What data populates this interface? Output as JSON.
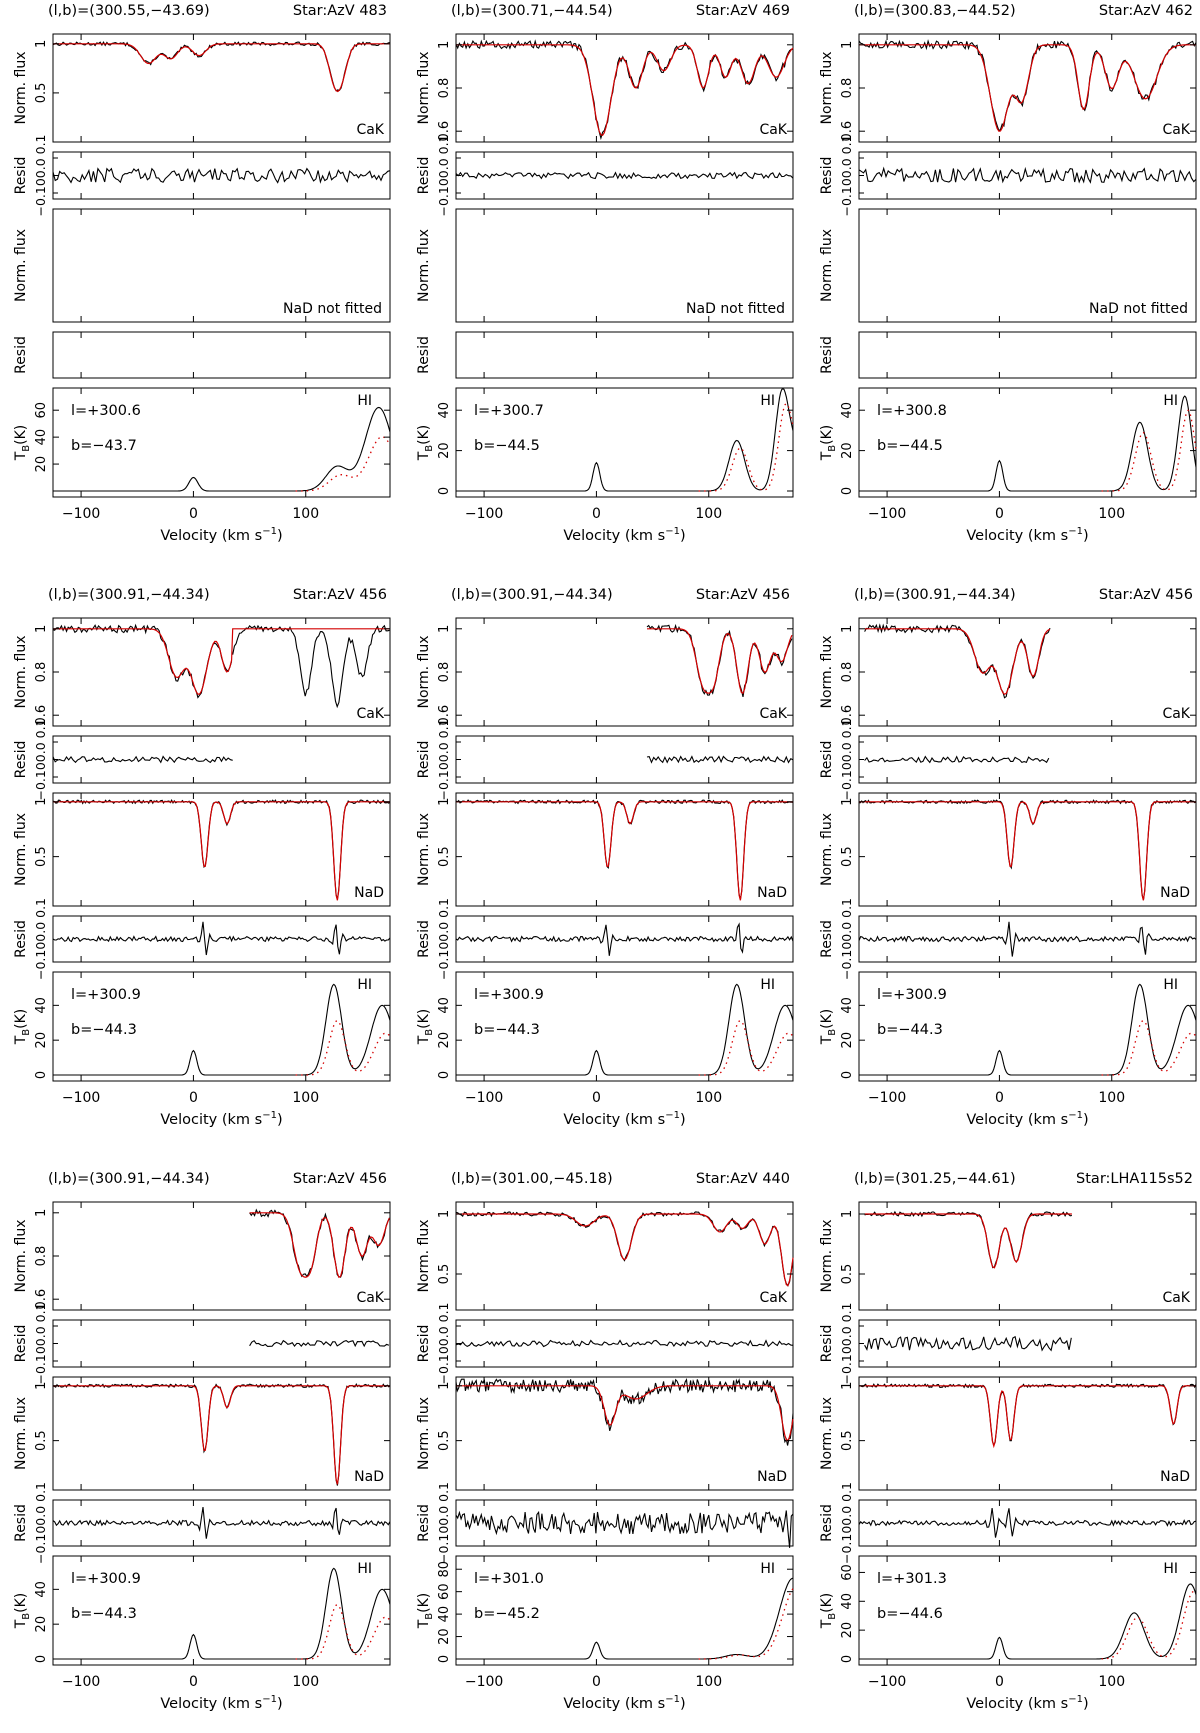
{
  "chart_data": {
    "type": "line",
    "common": {
      "cak_ylabel": "Norm. flux",
      "resid_ylabel": "Resid",
      "nad_ylabel": "Norm. flux",
      "hi_ylabel_main": "T",
      "hi_ylabel_sub": "B",
      "hi_ylabel_unit": "(K)",
      "xlabel_main": "Velocity (km s",
      "xlabel_sup": "−1",
      "xlabel_close": ")",
      "cak_label": "CaK",
      "nad_label": "NaD",
      "hi_label": "HI",
      "nad_not_fitted": "NaD not fitted",
      "x_ticks": [
        "−100",
        "0",
        "100"
      ],
      "resid_ticks": [
        "−0.10",
        "0.0",
        "0.1"
      ],
      "x_range": [
        -125,
        175
      ],
      "colors": {
        "observed": "#000000",
        "fit": "#d40000",
        "hi_model": "#d40000"
      }
    },
    "panels": [
      {
        "coord": "(l,b)=(300.55,−43.69)",
        "star": "Star:AzV 483",
        "l_label": "l=+300.6",
        "b_label": "b=−43.7",
        "cak": {
          "xr": [
            -125,
            175
          ],
          "yr": [
            0,
            1.1
          ],
          "ticks": [
            "0.5",
            "1"
          ],
          "tick_vals": [
            0.5,
            1
          ],
          "fit_start": -125,
          "comps": [
            [
              -40,
              0.2,
              7
            ],
            [
              -20,
              0.15,
              6
            ],
            [
              5,
              0.12,
              6
            ],
            [
              125,
              0.32,
              5
            ],
            [
              132,
              0.3,
              5
            ]
          ]
        },
        "nad": null,
        "hi": {
          "ymax": 75,
          "ticks": [
            "20",
            "40",
            "60"
          ],
          "tick_vals": [
            20,
            40,
            60
          ],
          "comps": [
            [
              0,
              10,
              4
            ],
            [
              128,
              18,
              10
            ],
            [
              165,
              62,
              12
            ]
          ],
          "model_scale": 0.65
        }
      },
      {
        "coord": "(l,b)=(300.71,−44.54)",
        "star": "Star:AzV 469",
        "l_label": "l=+300.7",
        "b_label": "b=−44.5",
        "cak": {
          "xr": [
            -125,
            175
          ],
          "yr": [
            0.55,
            1.05
          ],
          "ticks": [
            "0.6",
            "0.8",
            "1"
          ],
          "tick_vals": [
            0.6,
            0.8,
            1
          ],
          "fit_start": -125,
          "comps": [
            [
              5,
              0.42,
              8
            ],
            [
              35,
              0.2,
              6
            ],
            [
              60,
              0.12,
              6
            ],
            [
              95,
              0.2,
              5
            ],
            [
              115,
              0.15,
              5
            ],
            [
              135,
              0.18,
              6
            ],
            [
              160,
              0.15,
              7
            ]
          ]
        },
        "nad": null,
        "hi": {
          "ymax": 50,
          "ticks": [
            "0",
            "20",
            "40"
          ],
          "tick_vals": [
            0,
            20,
            40
          ],
          "comps": [
            [
              0,
              14,
              3
            ],
            [
              125,
              25,
              7
            ],
            [
              165,
              45,
              6
            ],
            [
              178,
              20,
              8
            ]
          ],
          "model_scale": 0.85
        }
      },
      {
        "coord": "(l,b)=(300.83,−44.52)",
        "star": "Star:AzV 462",
        "l_label": "l=+300.8",
        "b_label": "b=−44.5",
        "cak": {
          "xr": [
            -125,
            175
          ],
          "yr": [
            0.55,
            1.05
          ],
          "ticks": [
            "0.6",
            "0.8",
            "1"
          ],
          "tick_vals": [
            0.6,
            0.8,
            1
          ],
          "fit_start": -125,
          "comps": [
            [
              0,
              0.4,
              8
            ],
            [
              20,
              0.25,
              6
            ],
            [
              75,
              0.3,
              5
            ],
            [
              100,
              0.2,
              6
            ],
            [
              130,
              0.25,
              10
            ]
          ]
        },
        "nad": null,
        "hi": {
          "ymax": 50,
          "ticks": [
            "0",
            "20",
            "40"
          ],
          "tick_vals": [
            0,
            20,
            40
          ],
          "comps": [
            [
              0,
              15,
              3
            ],
            [
              125,
              34,
              7
            ],
            [
              165,
              47,
              6
            ]
          ],
          "model_scale": 0.85
        }
      },
      {
        "coord": "(l,b)=(300.91,−44.34)",
        "star": "Star:AzV 456",
        "l_label": "l=+300.9",
        "b_label": "b=−44.3",
        "cak": {
          "xr": [
            -125,
            175
          ],
          "yr": [
            0.55,
            1.05
          ],
          "ticks": [
            "0.6",
            "0.8",
            "1"
          ],
          "tick_vals": [
            0.6,
            0.8,
            1
          ],
          "fit_start": -125,
          "fit_end": 35,
          "comps": [
            [
              -15,
              0.22,
              7
            ],
            [
              5,
              0.3,
              7
            ],
            [
              30,
              0.2,
              5
            ],
            [
              100,
              0.3,
              5
            ],
            [
              128,
              0.35,
              5
            ],
            [
              150,
              0.22,
              5
            ]
          ]
        },
        "nad": {
          "ticks": [
            "0.5",
            "1"
          ],
          "tick_vals": [
            0.5,
            1
          ],
          "comps": [
            [
              10,
              0.6,
              3
            ],
            [
              30,
              0.2,
              3
            ],
            [
              128,
              0.9,
              3
            ]
          ]
        },
        "hi": {
          "ymax": 58,
          "ticks": [
            "0",
            "20",
            "40"
          ],
          "tick_vals": [
            0,
            20,
            40
          ],
          "comps": [
            [
              0,
              14,
              3
            ],
            [
              125,
              52,
              7
            ],
            [
              168,
              40,
              10
            ]
          ],
          "model_scale": 0.6
        }
      },
      {
        "coord": "(l,b)=(300.91,−44.34)",
        "star": "Star:AzV 456",
        "l_label": "l=+300.9",
        "b_label": "b=−44.3",
        "cak": {
          "xr": [
            -125,
            175
          ],
          "yr": [
            0.55,
            1.05
          ],
          "ticks": [
            "0.6",
            "0.8",
            "1"
          ],
          "tick_vals": [
            0.6,
            0.8,
            1
          ],
          "fit_start": 45,
          "comps": [
            [
              95,
              0.25,
              6
            ],
            [
              105,
              0.2,
              5
            ],
            [
              130,
              0.3,
              5
            ],
            [
              150,
              0.2,
              5
            ],
            [
              165,
              0.15,
              5
            ]
          ]
        },
        "nad": {
          "ticks": [
            "0.5",
            "1"
          ],
          "tick_vals": [
            0.5,
            1
          ],
          "comps": [
            [
              10,
              0.6,
              3
            ],
            [
              30,
              0.2,
              3
            ],
            [
              128,
              0.9,
              3
            ]
          ]
        },
        "hi": {
          "ymax": 58,
          "ticks": [
            "0",
            "20",
            "40"
          ],
          "tick_vals": [
            0,
            20,
            40
          ],
          "comps": [
            [
              0,
              14,
              3
            ],
            [
              125,
              52,
              7
            ],
            [
              168,
              40,
              10
            ]
          ],
          "model_scale": 0.6
        }
      },
      {
        "coord": "(l,b)=(300.91,−44.34)",
        "star": "Star:AzV 456",
        "l_label": "l=+300.9",
        "b_label": "b=−44.3",
        "cak": {
          "xr": [
            -125,
            175
          ],
          "yr": [
            0.55,
            1.05
          ],
          "ticks": [
            "0.6",
            "0.8",
            "1"
          ],
          "tick_vals": [
            0.6,
            0.8,
            1
          ],
          "fit_start": -120,
          "fit_end": 45,
          "comps": [
            [
              -15,
              0.2,
              7
            ],
            [
              5,
              0.3,
              7
            ],
            [
              30,
              0.22,
              5
            ]
          ]
        },
        "nad": {
          "ticks": [
            "0.5",
            "1"
          ],
          "tick_vals": [
            0.5,
            1
          ],
          "comps": [
            [
              10,
              0.6,
              3
            ],
            [
              30,
              0.2,
              3
            ],
            [
              128,
              0.9,
              3
            ]
          ]
        },
        "hi": {
          "ymax": 58,
          "ticks": [
            "0",
            "20",
            "40"
          ],
          "tick_vals": [
            0,
            20,
            40
          ],
          "comps": [
            [
              0,
              14,
              3
            ],
            [
              125,
              52,
              7
            ],
            [
              168,
              40,
              10
            ]
          ],
          "model_scale": 0.6
        }
      },
      {
        "coord": "(l,b)=(300.91,−44.34)",
        "star": "Star:AzV 456",
        "l_label": "l=+300.9",
        "b_label": "b=−44.3",
        "cak": {
          "xr": [
            -125,
            175
          ],
          "yr": [
            0.55,
            1.05
          ],
          "ticks": [
            "0.6",
            "0.8",
            "1"
          ],
          "tick_vals": [
            0.6,
            0.8,
            1
          ],
          "fit_start": 50,
          "comps": [
            [
              95,
              0.25,
              6
            ],
            [
              105,
              0.2,
              5
            ],
            [
              130,
              0.3,
              5
            ],
            [
              150,
              0.2,
              5
            ],
            [
              165,
              0.15,
              5
            ]
          ]
        },
        "nad": {
          "ticks": [
            "0.5",
            "1"
          ],
          "tick_vals": [
            0.5,
            1
          ],
          "comps": [
            [
              10,
              0.6,
              3
            ],
            [
              30,
              0.2,
              3
            ],
            [
              128,
              0.9,
              3
            ]
          ]
        },
        "hi": {
          "ymax": 58,
          "ticks": [
            "0",
            "20",
            "40"
          ],
          "tick_vals": [
            0,
            20,
            40
          ],
          "comps": [
            [
              0,
              14,
              3
            ],
            [
              125,
              52,
              7
            ],
            [
              168,
              40,
              10
            ]
          ],
          "model_scale": 0.6
        }
      },
      {
        "coord": "(l,b)=(301.00,−45.18)",
        "star": "Star:AzV 440",
        "l_label": "l=+301.0",
        "b_label": "b=−45.2",
        "cak": {
          "xr": [
            -125,
            175
          ],
          "yr": [
            0.2,
            1.1
          ],
          "ticks": [
            "0.5",
            "1"
          ],
          "tick_vals": [
            0.5,
            1
          ],
          "fit_start": -125,
          "comps": [
            [
              -10,
              0.1,
              8
            ],
            [
              25,
              0.38,
              6
            ],
            [
              110,
              0.15,
              6
            ],
            [
              130,
              0.12,
              5
            ],
            [
              150,
              0.25,
              5
            ],
            [
              170,
              0.6,
              5
            ]
          ]
        },
        "nad": {
          "ticks": [
            "0.5",
            "1"
          ],
          "tick_vals": [
            0.5,
            1
          ],
          "comps": [
            [
              12,
              0.35,
              5
            ],
            [
              35,
              0.12,
              10
            ],
            [
              170,
              0.5,
              5
            ]
          ],
          "noise": 0.06
        },
        "hi": {
          "ymax": 90,
          "ticks": [
            "0",
            "20",
            "40",
            "60",
            "80"
          ],
          "tick_vals": [
            0,
            20,
            40,
            60,
            80
          ],
          "comps": [
            [
              0,
              15,
              3
            ],
            [
              125,
              4,
              10
            ],
            [
              175,
              72,
              12
            ]
          ],
          "model_scale": 0.9
        }
      },
      {
        "coord": "(l,b)=(301.25,−44.61)",
        "star": "Star:LHA115s52",
        "l_label": "l=+301.3",
        "b_label": "b=−44.6",
        "cak": {
          "xr": [
            -125,
            175
          ],
          "yr": [
            0.2,
            1.1
          ],
          "ticks": [
            "0.5",
            "1"
          ],
          "tick_vals": [
            0.5,
            1
          ],
          "fit_start": -120,
          "fit_end": 65,
          "comps": [
            [
              -5,
              0.45,
              5
            ],
            [
              15,
              0.4,
              5
            ]
          ]
        },
        "nad": {
          "ticks": [
            "0.5",
            "1"
          ],
          "tick_vals": [
            0.5,
            1
          ],
          "comps": [
            [
              -5,
              0.55,
              3
            ],
            [
              10,
              0.5,
              3
            ],
            [
              155,
              0.35,
              3
            ]
          ]
        },
        "hi": {
          "ymax": 70,
          "ticks": [
            "0",
            "20",
            "40",
            "60"
          ],
          "tick_vals": [
            0,
            20,
            40,
            60
          ],
          "comps": [
            [
              0,
              15,
              3
            ],
            [
              120,
              32,
              9
            ],
            [
              170,
              52,
              9
            ]
          ],
          "model_scale": 0.9
        }
      }
    ]
  }
}
